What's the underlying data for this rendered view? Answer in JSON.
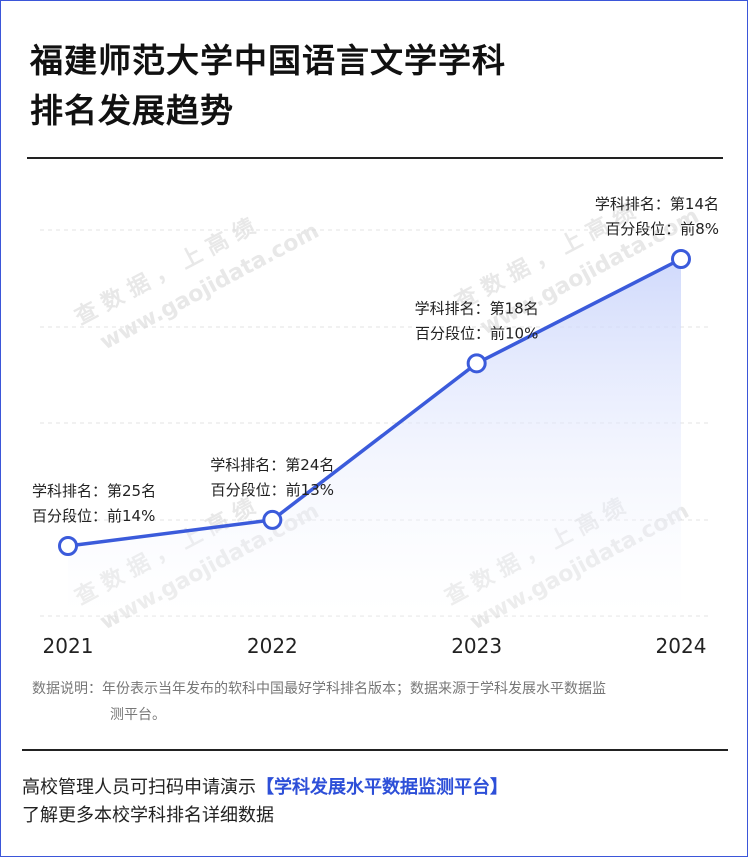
{
  "title": {
    "line1": "福建师范大学中国语言文学学科",
    "line2": "排名发展趋势"
  },
  "chart_data": {
    "type": "line",
    "x": [
      "2021",
      "2022",
      "2023",
      "2024"
    ],
    "series": [
      {
        "ranks": [
          25,
          24,
          18,
          14
        ],
        "percentiles": [
          14,
          13,
          10,
          8
        ]
      }
    ],
    "annotations": [
      {
        "line1": "学科排名：第25名",
        "line2": "百分段位：前14%"
      },
      {
        "line1": "学科排名：第24名",
        "line2": "百分段位：前13%"
      },
      {
        "line1": "学科排名：第18名",
        "line2": "百分段位：前10%"
      },
      {
        "line1": "学科排名：第14名",
        "line2": "百分段位：前8%"
      }
    ],
    "line_color": "#3b5bdb",
    "grid": "dashed horizontal"
  },
  "watermark": {
    "text1": "查 数 据 ， 上 高 绩",
    "text2": "www.gaojidata.com"
  },
  "note": {
    "line1": "数据说明：年份表示当年发布的软科中国最好学科排名版本；数据来源于学科发展水平数据监",
    "line2": "测平台。"
  },
  "cta": {
    "prefix": "高校管理人员可扫码申请演示",
    "highlight": "【学科发展水平数据监测平台】",
    "line2": "了解更多本校学科排名详细数据"
  }
}
